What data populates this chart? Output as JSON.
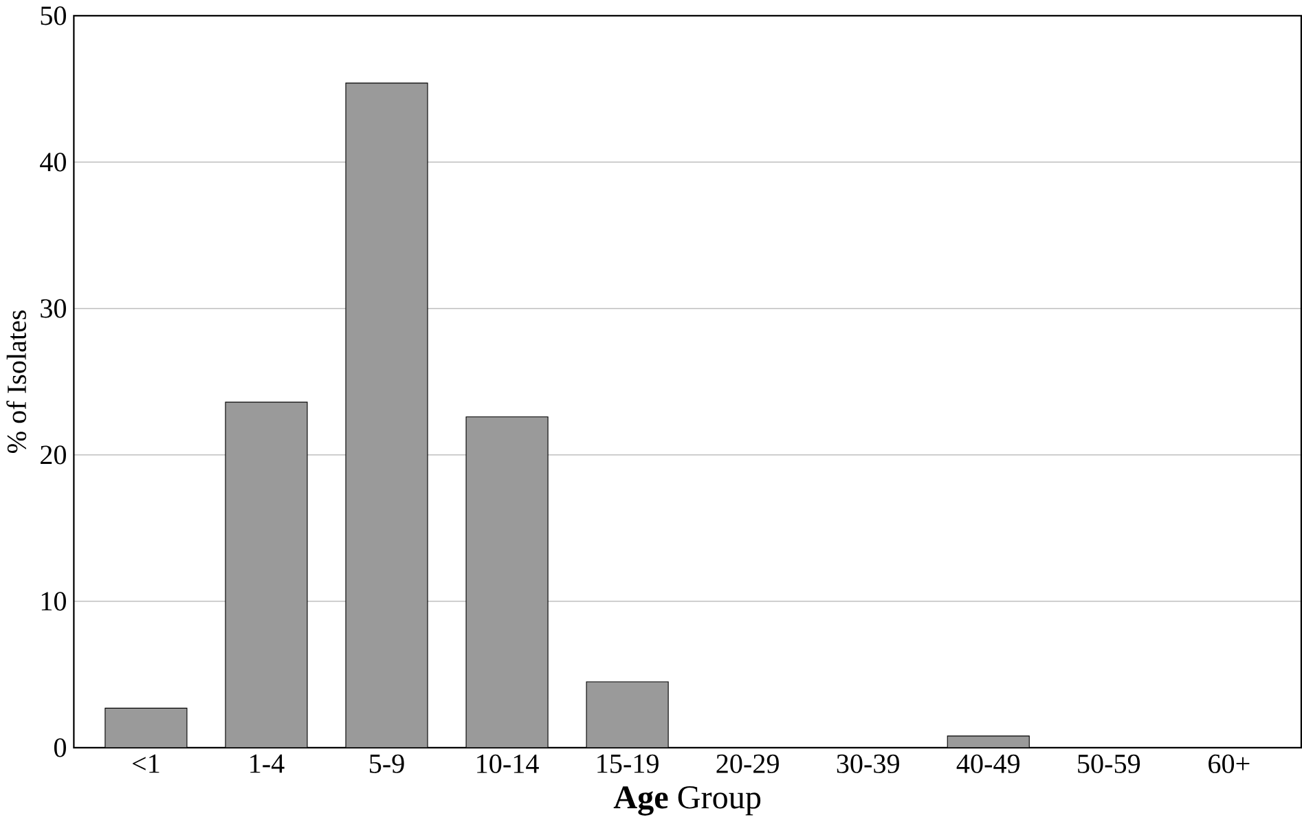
{
  "chart_data": {
    "type": "bar",
    "xlabel": "**Age** Group",
    "ylabel": "% of Isolates",
    "categories": [
      "<1",
      "1-4",
      "5-9",
      "10-14",
      "15-19",
      "20-29",
      "30-39",
      "40-49",
      "50-59",
      "60+"
    ],
    "values": [
      2.7,
      23.6,
      45.4,
      22.6,
      4.5,
      0,
      0,
      0.8,
      0,
      0
    ],
    "color": "#9a9a9a",
    "ylim": [
      0,
      50
    ],
    "yticks": [
      0,
      10,
      20,
      30,
      40,
      50
    ],
    "grid": "y"
  }
}
